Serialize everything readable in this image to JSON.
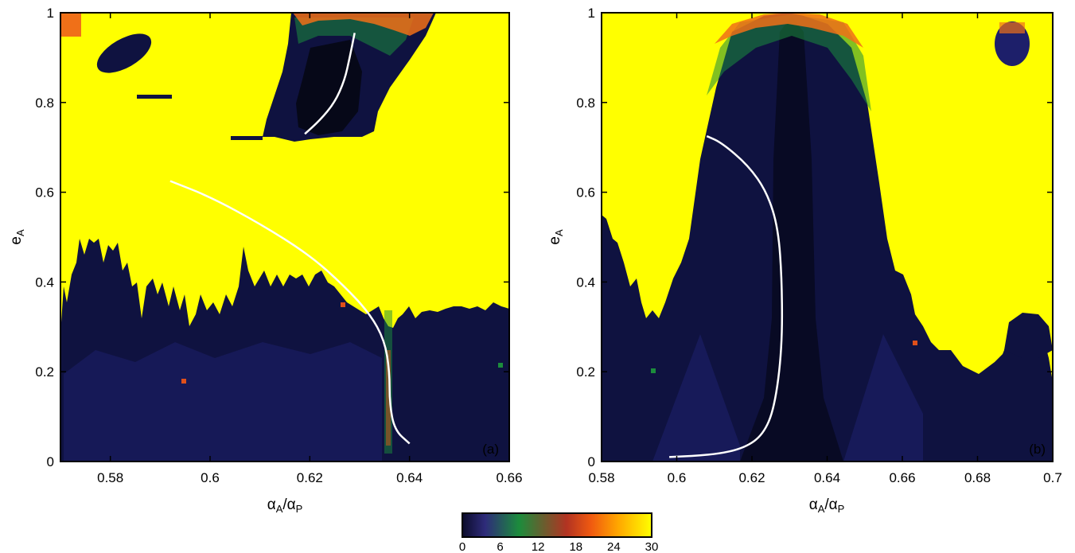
{
  "chart_data": [
    {
      "type": "heatmap",
      "panel_label": "(a)",
      "xlabel_main": "α",
      "xlabel_sub1": "A",
      "xlabel_sep": "/α",
      "xlabel_sub2": "P",
      "ylabel_main": "e",
      "ylabel_sub": "A",
      "xlim": [
        0.57,
        0.66
      ],
      "ylim": [
        0,
        1
      ],
      "xticks": [
        "0.58",
        "0.6",
        "0.62",
        "0.64",
        "0.66"
      ],
      "yticks": [
        "0",
        "0.2",
        "0.4",
        "0.6",
        "0.8",
        "1"
      ],
      "background_value": 30,
      "regions": [
        {
          "name": "lower-stable",
          "value_range": [
            0,
            6
          ],
          "x_range": [
            0.57,
            0.66
          ],
          "e_max_range": [
            0.3,
            0.45
          ]
        },
        {
          "name": "upper-resonance",
          "value_range": [
            0,
            24
          ],
          "x_range": [
            0.615,
            0.64
          ],
          "e_range": [
            0.72,
            1.0
          ]
        },
        {
          "name": "small-island",
          "value_range": [
            0,
            6
          ],
          "x_range": [
            0.58,
            0.587
          ],
          "e_range": [
            0.87,
            0.94
          ]
        }
      ],
      "curves": [
        {
          "x": [
            0.592,
            0.6,
            0.61,
            0.62,
            0.627,
            0.632,
            0.635,
            0.636,
            0.636,
            0.637,
            0.64
          ],
          "y": [
            0.625,
            0.59,
            0.53,
            0.46,
            0.39,
            0.33,
            0.27,
            0.2,
            0.13,
            0.07,
            0.04
          ]
        },
        {
          "x": [
            0.619,
            0.622,
            0.625,
            0.627,
            0.628,
            0.629
          ],
          "y": [
            0.73,
            0.76,
            0.8,
            0.85,
            0.9,
            0.955
          ]
        }
      ]
    },
    {
      "type": "heatmap",
      "panel_label": "(b)",
      "xlabel_main": "α",
      "xlabel_sub1": "A",
      "xlabel_sep": "/α",
      "xlabel_sub2": "P",
      "ylabel_main": "e",
      "ylabel_sub": "A",
      "xlim": [
        0.58,
        0.7
      ],
      "ylim": [
        0,
        1
      ],
      "xticks": [
        "0.58",
        "0.6",
        "0.62",
        "0.64",
        "0.66",
        "0.68",
        "0.7"
      ],
      "yticks": [
        "0",
        "0.2",
        "0.4",
        "0.6",
        "0.8",
        "1"
      ],
      "background_value": 30,
      "regions": [
        {
          "name": "central-resonance",
          "value_range": [
            0,
            24
          ],
          "x_range": [
            0.605,
            0.655
          ],
          "e_range": [
            0,
            1.0
          ]
        },
        {
          "name": "lower-stable",
          "value_range": [
            0,
            6
          ],
          "x_range": [
            0.58,
            0.7
          ],
          "e_max_range": [
            0.1,
            0.45
          ]
        },
        {
          "name": "small-island",
          "value_range": [
            0,
            6
          ],
          "x_range": [
            0.686,
            0.694
          ],
          "e_range": [
            0.89,
            0.96
          ]
        }
      ],
      "curves": [
        {
          "x": [
            0.598,
            0.61,
            0.618,
            0.623,
            0.626,
            0.628,
            0.628,
            0.627,
            0.624,
            0.619,
            0.612,
            0.608
          ],
          "y": [
            0.01,
            0.015,
            0.03,
            0.06,
            0.12,
            0.25,
            0.4,
            0.52,
            0.6,
            0.66,
            0.71,
            0.725
          ]
        }
      ]
    }
  ],
  "colorbar": {
    "ticks": [
      "0",
      "6",
      "12",
      "18",
      "24",
      "30"
    ],
    "range": [
      0,
      30
    ],
    "colors": [
      "#0b0b2a",
      "#2e2b7a",
      "#1c8c3c",
      "#b23322",
      "#f05a10",
      "#ffa500",
      "#ffff00"
    ]
  },
  "colors": {
    "background": "#ffff00",
    "curve": "#ffffff",
    "frame": "#000000"
  }
}
